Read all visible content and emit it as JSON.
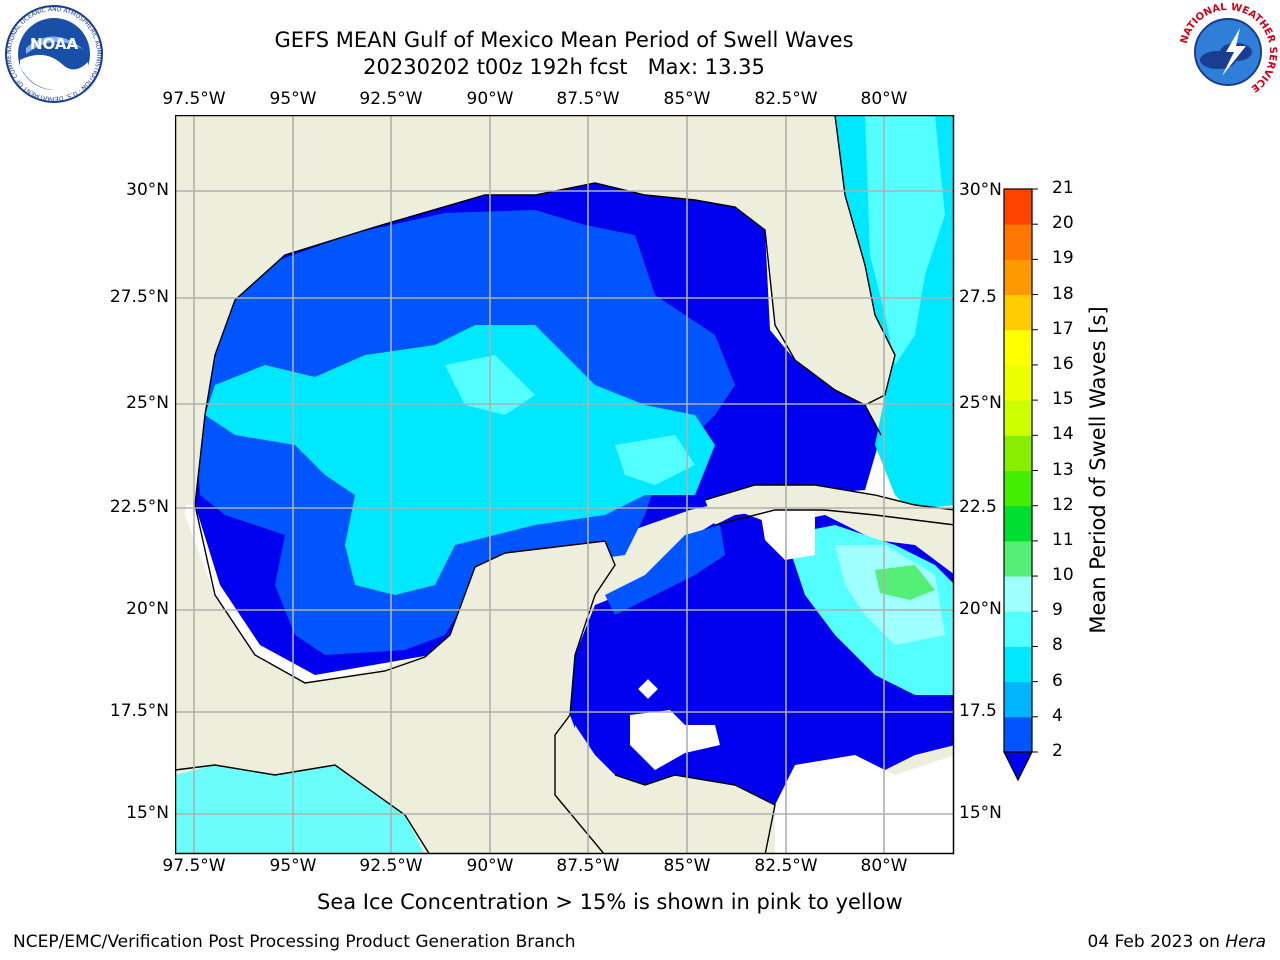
{
  "title": {
    "line1": "GEFS MEAN Gulf of Mexico Mean Period of Swell Waves",
    "line2": "20230202 t00z 192h fcst   Max: 13.35"
  },
  "map": {
    "lon_ticks": [
      "97.5°W",
      "95°W",
      "92.5°W",
      "90°W",
      "87.5°W",
      "85°W",
      "82.5°W",
      "80°W"
    ],
    "lat_ticks_left": [
      "30°N",
      "27.5°N",
      "25°N",
      "22.5°N",
      "20°N",
      "17.5°N",
      "15°N"
    ],
    "lat_ticks_right": [
      "30°N",
      "27.5",
      "25°N",
      "22.5",
      "20°N",
      "17.5",
      "15°N"
    ],
    "land_color": "#eeeedd",
    "ocean_no_data_color": "#ffffff"
  },
  "colorbar": {
    "label": "Mean Period of Swell Waves [s]",
    "ticks": [
      "2",
      "4",
      "6",
      "8",
      "9",
      "10",
      "11",
      "12",
      "13",
      "14",
      "15",
      "16",
      "17",
      "18",
      "19",
      "20",
      "21"
    ],
    "colors": [
      "#0055ff",
      "#00b4ff",
      "#00e8ff",
      "#54ffff",
      "#a0ffff",
      "#55ee77",
      "#00dd33",
      "#44ee00",
      "#88ee00",
      "#ccff00",
      "#eeff00",
      "#ffff00",
      "#ffcc00",
      "#ff9900",
      "#ff7700",
      "#ff4400",
      "#ff1100",
      "#ff0000"
    ],
    "under_color": "#0000ee"
  },
  "note": "Sea Ice Concentration > 15% is shown in pink to yellow",
  "footer": {
    "left": "NCEP/EMC/Verification Post Processing Product Generation Branch",
    "date": "04 Feb 2023 on ",
    "machine": "Hera"
  },
  "logos": {
    "noaa_text": "NOAA",
    "noaa_ring": "NATIONAL OCEANIC AND ATMOSPHERIC ADMINISTRATION · U.S. DEPARTMENT OF COMMERCE",
    "nws_ring": "NATIONAL WEATHER SERVICE"
  }
}
